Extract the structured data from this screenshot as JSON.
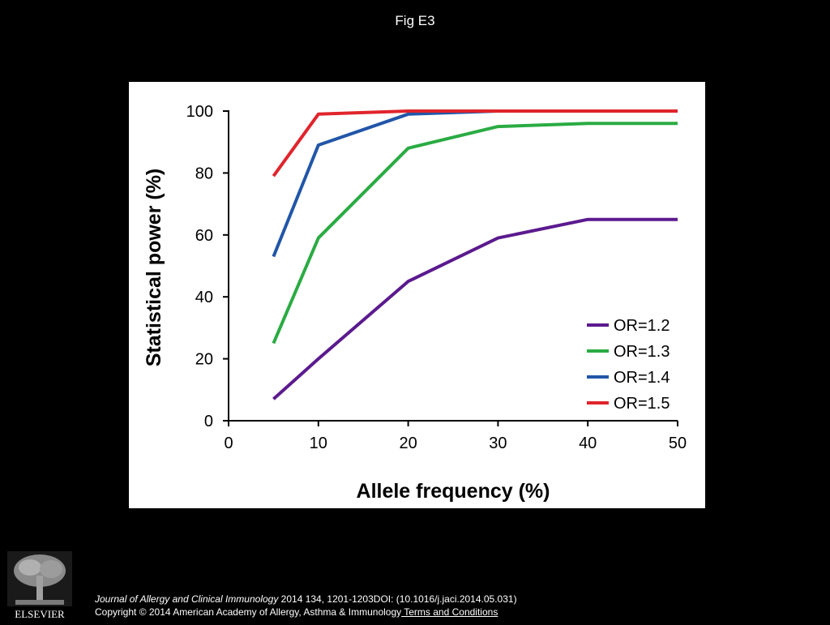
{
  "figure": {
    "title": "Fig E3"
  },
  "chart_data": {
    "type": "line",
    "title": "",
    "xlabel": "Allele frequency (%)",
    "ylabel": "Statistical power (%)",
    "xlim": [
      0,
      50
    ],
    "ylim": [
      0,
      100
    ],
    "xticks": [
      0,
      10,
      20,
      30,
      40,
      50
    ],
    "yticks": [
      0,
      20,
      40,
      60,
      80,
      100
    ],
    "grid": false,
    "legend_position": "bottom-right",
    "x": [
      5,
      10,
      20,
      30,
      40,
      50
    ],
    "series": [
      {
        "name": "OR=1.2",
        "color": "#5b1a8e",
        "values": [
          7,
          20,
          45,
          59,
          65,
          65
        ]
      },
      {
        "name": "OR=1.3",
        "color": "#2aab43",
        "values": [
          25,
          59,
          88,
          95,
          96,
          96
        ]
      },
      {
        "name": "OR=1.4",
        "color": "#2156a8",
        "values": [
          53,
          89,
          99,
          100,
          100,
          100
        ]
      },
      {
        "name": "OR=1.5",
        "color": "#e0242b",
        "values": [
          79,
          99,
          100,
          100,
          100,
          100
        ]
      }
    ]
  },
  "footer": {
    "logo_text": "ELSEVIER",
    "journal": "Journal of Allergy and Clinical Immunology",
    "citation_rest": " 2014 134, 1201-1203DOI: (10.1016/j.jaci.2014.05.031)",
    "copyright": "Copyright © 2014 American Academy of Allergy, Asthma & Immunology",
    "terms_link": " Terms and Conditions"
  }
}
